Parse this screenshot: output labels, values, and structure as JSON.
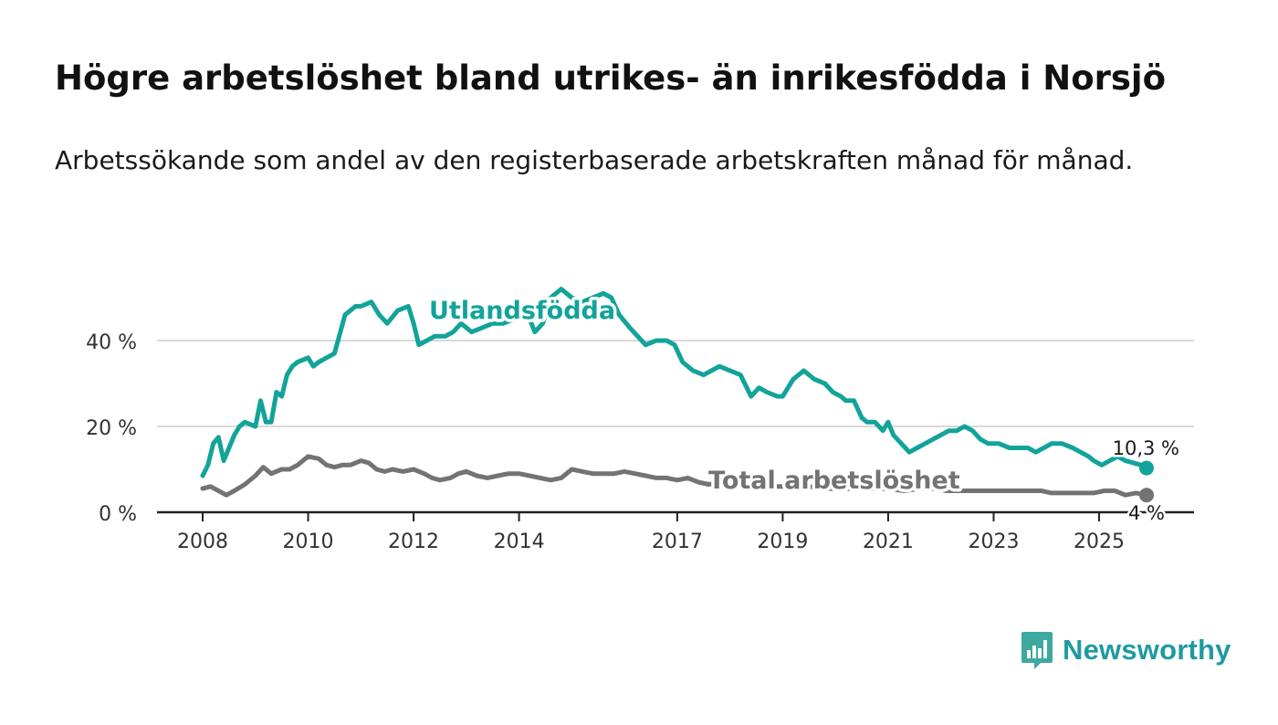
{
  "title": "Högre arbetslöshet bland utrikes- än inrikesfödda i Norsjö",
  "subtitle": "Arbetssökande som andel av den registerbaserade arbetskraften månad för månad.",
  "colors": {
    "foreign": "#12a39a",
    "total": "#737373",
    "grid": "#d9d9d9",
    "text": "#1a1a1a"
  },
  "chart_data": {
    "type": "line",
    "title": "Högre arbetslöshet bland utrikes- än inrikesfödda i Norsjö",
    "xlabel": "",
    "ylabel": "",
    "xlim": [
      2008,
      2025.9
    ],
    "ylim": [
      0,
      55
    ],
    "y_ticks": [
      0,
      20,
      40
    ],
    "y_tick_labels": [
      "0 %",
      "20 %",
      "40 %"
    ],
    "x_ticks": [
      2008,
      2010,
      2012,
      2014,
      2017,
      2019,
      2021,
      2023,
      2025
    ],
    "x_tick_labels": [
      "2008",
      "2010",
      "2012",
      "2014",
      "2017",
      "2019",
      "2021",
      "2023",
      "2025"
    ],
    "grid": true,
    "series": [
      {
        "name": "Utlandsfödda",
        "label": "Utlandsfödda",
        "end_label": "10,3 %",
        "x": [
          2008.0,
          2008.1,
          2008.2,
          2008.3,
          2008.4,
          2008.5,
          2008.6,
          2008.7,
          2008.8,
          2009.0,
          2009.1,
          2009.2,
          2009.3,
          2009.4,
          2009.5,
          2009.6,
          2009.7,
          2009.8,
          2010.0,
          2010.1,
          2010.2,
          2010.35,
          2010.5,
          2010.7,
          2010.9,
          2011.0,
          2011.2,
          2011.35,
          2011.5,
          2011.7,
          2011.9,
          2012.0,
          2012.1,
          2012.25,
          2012.4,
          2012.6,
          2012.75,
          2012.9,
          2013.1,
          2013.3,
          2013.5,
          2013.7,
          2013.9,
          2014.1,
          2014.3,
          2014.45,
          2014.6,
          2014.8,
          2015.0,
          2015.2,
          2015.4,
          2015.6,
          2015.75,
          2015.9,
          2016.1,
          2016.25,
          2016.4,
          2016.6,
          2016.8,
          2016.95,
          2017.1,
          2017.3,
          2017.5,
          2017.65,
          2017.8,
          2018.0,
          2018.2,
          2018.4,
          2018.55,
          2018.7,
          2018.9,
          2019.0,
          2019.2,
          2019.4,
          2019.6,
          2019.8,
          2019.95,
          2020.1,
          2020.2,
          2020.35,
          2020.5,
          2020.6,
          2020.75,
          2020.9,
          2021.0,
          2021.1,
          2021.25,
          2021.4,
          2021.55,
          2021.7,
          2021.85,
          2022.0,
          2022.15,
          2022.3,
          2022.45,
          2022.6,
          2022.75,
          2022.9,
          2023.1,
          2023.3,
          2023.5,
          2023.65,
          2023.8,
          2023.95,
          2024.1,
          2024.3,
          2024.5,
          2024.65,
          2024.8,
          2024.9,
          2025.05,
          2025.2,
          2025.35,
          2025.5,
          2025.65,
          2025.8,
          2025.9
        ],
        "values": [
          8.5,
          11,
          16,
          17.5,
          12,
          15,
          18,
          20,
          21,
          20,
          26,
          21,
          21,
          28,
          27,
          32,
          34,
          35,
          36,
          34,
          35,
          36,
          37,
          46,
          48,
          48,
          49,
          46,
          44,
          47,
          48,
          44,
          39,
          40,
          41,
          41,
          42,
          44,
          42,
          43,
          44,
          44,
          45,
          48,
          42,
          44,
          50,
          52,
          50,
          49,
          50,
          51,
          50,
          46,
          43,
          41,
          39,
          40,
          40,
          39,
          35,
          33,
          32,
          33,
          34,
          33,
          32,
          27,
          29,
          28,
          27,
          27,
          31,
          33,
          31,
          30,
          28,
          27,
          26,
          26,
          22,
          21,
          21,
          19,
          21,
          18,
          16,
          14,
          15,
          16,
          17,
          18,
          19,
          19,
          20,
          19,
          17,
          16,
          16,
          15,
          15,
          15,
          14,
          15,
          16,
          16,
          15,
          14,
          13,
          12,
          11,
          12,
          13,
          12,
          11.5,
          11,
          10.3
        ]
      },
      {
        "name": "Total arbetslöshet",
        "label": "Total arbetslöshet",
        "end_label": "4 %",
        "x": [
          2008.0,
          2008.15,
          2008.3,
          2008.45,
          2008.6,
          2008.8,
          2009.0,
          2009.15,
          2009.3,
          2009.5,
          2009.65,
          2009.8,
          2010.0,
          2010.2,
          2010.35,
          2010.5,
          2010.65,
          2010.8,
          2011.0,
          2011.15,
          2011.3,
          2011.45,
          2011.6,
          2011.8,
          2012.0,
          2012.2,
          2012.35,
          2012.5,
          2012.7,
          2012.85,
          2013.0,
          2013.2,
          2013.4,
          2013.6,
          2013.8,
          2014.0,
          2014.2,
          2014.4,
          2014.6,
          2014.8,
          2015.0,
          2015.2,
          2015.4,
          2015.6,
          2015.8,
          2016.0,
          2016.2,
          2016.4,
          2016.6,
          2016.8,
          2017.0,
          2017.2,
          2017.4,
          2017.6,
          2017.8,
          2018.0,
          2018.3,
          2018.6,
          2018.9,
          2019.2,
          2019.5,
          2019.8,
          2020.1,
          2020.4,
          2020.7,
          2021.0,
          2021.3,
          2021.6,
          2021.9,
          2022.1,
          2022.3,
          2022.5,
          2022.7,
          2022.9,
          2023.1,
          2023.3,
          2023.5,
          2023.7,
          2023.9,
          2024.1,
          2024.3,
          2024.5,
          2024.7,
          2024.9,
          2025.1,
          2025.3,
          2025.5,
          2025.7,
          2025.9
        ],
        "values": [
          5.5,
          6,
          5,
          4,
          5,
          6.5,
          8.5,
          10.5,
          9,
          10,
          10,
          11,
          13,
          12.5,
          11,
          10.5,
          11,
          11,
          12,
          11.5,
          10,
          9.5,
          10,
          9.5,
          10,
          9,
          8,
          7.5,
          8,
          9,
          9.5,
          8.5,
          8,
          8.5,
          9,
          9,
          8.5,
          8,
          7.5,
          8,
          10,
          9.5,
          9,
          9,
          9,
          9.5,
          9,
          8.5,
          8,
          8,
          7.5,
          8,
          7,
          6.5,
          7,
          6.5,
          6.5,
          6,
          6,
          6,
          6,
          5.5,
          5.5,
          5.5,
          5.5,
          5.5,
          5,
          5.5,
          5.5,
          5,
          5,
          5,
          5,
          5,
          5,
          5,
          5,
          5,
          5,
          4.5,
          4.5,
          4.5,
          4.5,
          4.5,
          5,
          5,
          4,
          4.5,
          4
        ]
      }
    ]
  },
  "logo": {
    "name": "Newsworthy"
  }
}
